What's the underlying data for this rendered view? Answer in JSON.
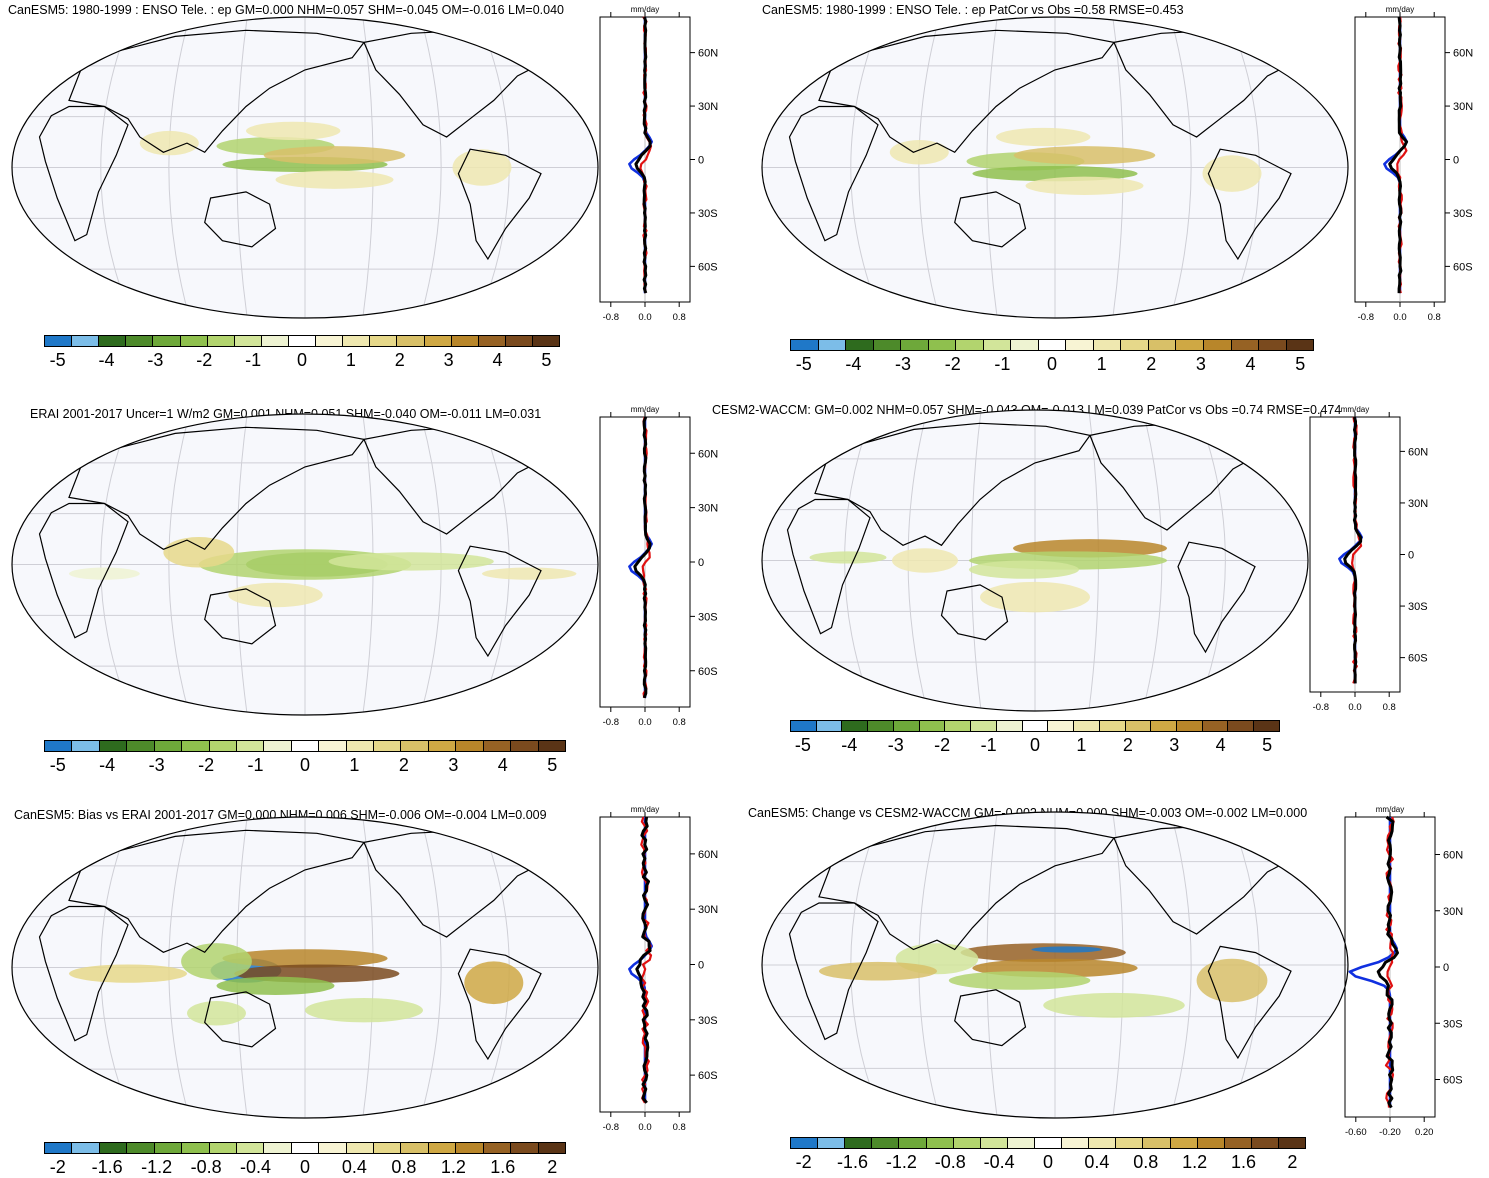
{
  "panels": [
    {
      "title": "CanESM5: 1980-1999 : ENSO Tele. : ep GM=0.000 NHM=0.057 SHM=-0.045 OM=-0.016 LM=0.040",
      "colorbar": "main",
      "zonal_xticks": [
        "-0.8",
        "0.0",
        "0.8"
      ]
    },
    {
      "title": "CanESM5: 1980-1999 : ENSO Tele. : ep PatCor vs Obs =0.58 RMSE=0.453",
      "colorbar": "main",
      "zonal_xticks": [
        "-0.8",
        "0.0",
        "0.8"
      ]
    },
    {
      "title": "ERAI 2001-2017 Uncer=1 W/m2 GM=0.001 NHM=0.051 SHM=-0.040 OM=-0.011 LM=0.031",
      "colorbar": "main",
      "zonal_xticks": [
        "-0.8",
        "0.0",
        "0.8"
      ]
    },
    {
      "title": "CESM2-WACCM: GM=0.002 NHM=0.057 SHM=-0.043 OM=-0.013 LM=0.039 PatCor vs Obs =0.74 RMSE=0.474",
      "colorbar": "main",
      "zonal_xticks": [
        "-0.8",
        "0.0",
        "0.8"
      ]
    },
    {
      "title": "CanESM5: Bias vs ERAI 2001-2017 GM=0.000 NHM=0.006 SHM=-0.006 OM=-0.004 LM=0.009",
      "colorbar": "diff",
      "zonal_xticks": [
        "-0.8",
        "0.0",
        "0.8"
      ]
    },
    {
      "title": "CanESM5: Change vs CESM2-WACCM GM=-0.002 NHM=0.000 SHM=-0.003 OM=-0.002 LM=0.000",
      "colorbar": "diff",
      "zonal_xticks": [
        "-0.60",
        "-0.20",
        "0.20"
      ]
    }
  ],
  "zonal_unit": "mm/day",
  "lat_labels": [
    "60N",
    "30N",
    "0",
    "30S",
    "60S"
  ],
  "colorbars": {
    "main": {
      "labels": [
        "-5",
        "-4",
        "-3",
        "-2",
        "-1",
        "0",
        "1",
        "2",
        "3",
        "4",
        "5"
      ],
      "colors": [
        "#1f78c8",
        "#7cbde8",
        "#2e6b1e",
        "#4d8a2a",
        "#6ea83a",
        "#8fc04e",
        "#b2d46e",
        "#d2e59a",
        "#eef3d2",
        "#ffffff",
        "#f8f4d4",
        "#efe8b0",
        "#e6d88a",
        "#d8c068",
        "#cfa844",
        "#b8862a",
        "#966224",
        "#7a4a1e",
        "#5a3416"
      ]
    },
    "diff": {
      "labels": [
        "-2",
        "-1.6",
        "-1.2",
        "-0.8",
        "-0.4",
        "0",
        "0.4",
        "0.8",
        "1.2",
        "1.6",
        "2"
      ],
      "colors": [
        "#1f78c8",
        "#7cbde8",
        "#2e6b1e",
        "#4d8a2a",
        "#6ea83a",
        "#8fc04e",
        "#b2d46e",
        "#d2e59a",
        "#eef3d2",
        "#ffffff",
        "#f8f4d4",
        "#efe8b0",
        "#e6d88a",
        "#d8c068",
        "#cfa844",
        "#b8862a",
        "#966224",
        "#7a4a1e",
        "#5a3416"
      ]
    }
  },
  "line_colors": {
    "model": "#e01010",
    "obs": "#1030e0",
    "mean": "#000000"
  }
}
